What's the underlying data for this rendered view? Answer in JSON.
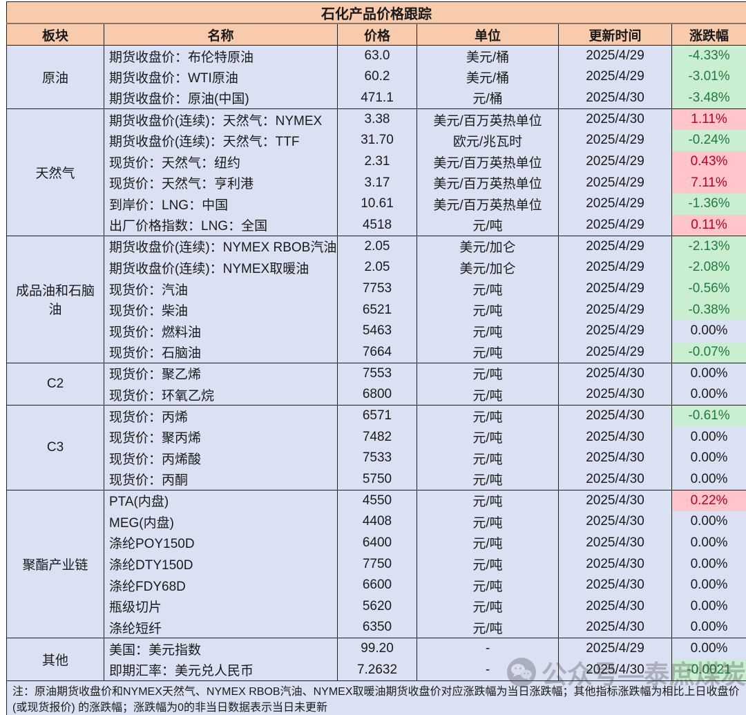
{
  "title": "石化产品价格跟踪",
  "columns": [
    "板块",
    "名称",
    "价格",
    "单位",
    "更新时间",
    "涨跌幅"
  ],
  "colors": {
    "header_bg": "#F8CBAD",
    "row_bg": "#D9E1F2",
    "up_bg": "#FFC5CB",
    "up_text": "#C00020",
    "down_bg": "#C9EED1",
    "down_text": "#1E7B3C",
    "text": "#1A1A1A",
    "border": "#1F1F1F"
  },
  "sections": [
    {
      "sector": "原油",
      "rows": [
        {
          "name": "期货收盘价：布伦特原油",
          "price": "63.0",
          "unit": "美元/桶",
          "date": "2025/4/29",
          "change": "-4.33%",
          "trend": "down"
        },
        {
          "name": "期货收盘价：WTI原油",
          "price": "60.2",
          "unit": "美元/桶",
          "date": "2025/4/29",
          "change": "-3.01%",
          "trend": "down"
        },
        {
          "name": "期货收盘价：原油(中国)",
          "price": "471.1",
          "unit": "元/桶",
          "date": "2025/4/30",
          "change": "-3.48%",
          "trend": "down"
        }
      ]
    },
    {
      "sector": "天然气",
      "rows": [
        {
          "name": "期货收盘价(连续)：天然气：NYMEX",
          "price": "3.38",
          "unit": "美元/百万英热单位",
          "date": "2025/4/30",
          "change": "1.11%",
          "trend": "up"
        },
        {
          "name": "期货收盘价(连续)：天然气：TTF",
          "price": "31.70",
          "unit": "欧元/兆瓦时",
          "date": "2025/4/29",
          "change": "-0.24%",
          "trend": "down"
        },
        {
          "name": "现货价：天然气：纽约",
          "price": "2.31",
          "unit": "美元/百万英热单位",
          "date": "2025/4/29",
          "change": "0.43%",
          "trend": "up"
        },
        {
          "name": "现货价：天然气：亨利港",
          "price": "3.17",
          "unit": "美元/百万英热单位",
          "date": "2025/4/29",
          "change": "7.11%",
          "trend": "up"
        },
        {
          "name": "到岸价：LNG：中国",
          "price": "10.61",
          "unit": "美元/百万英热单位",
          "date": "2025/4/29",
          "change": "-1.36%",
          "trend": "down"
        },
        {
          "name": "出厂价格指数：LNG：全国",
          "price": "4518",
          "unit": "元/吨",
          "date": "2025/4/29",
          "change": "0.11%",
          "trend": "up"
        }
      ]
    },
    {
      "sector": "成品油和石脑油",
      "rows": [
        {
          "name": "期货收盘价(连续)：NYMEX RBOB汽油",
          "price": "2.05",
          "unit": "美元/加仑",
          "date": "2025/4/29",
          "change": "-2.13%",
          "trend": "down"
        },
        {
          "name": "期货收盘价(连续)：NYMEX取暖油",
          "price": "2.05",
          "unit": "美元/加仑",
          "date": "2025/4/29",
          "change": "-2.08%",
          "trend": "down"
        },
        {
          "name": "现货价：汽油",
          "price": "7753",
          "unit": "元/吨",
          "date": "2025/4/29",
          "change": "-0.56%",
          "trend": "down"
        },
        {
          "name": "现货价：柴油",
          "price": "6521",
          "unit": "元/吨",
          "date": "2025/4/29",
          "change": "-0.38%",
          "trend": "down"
        },
        {
          "name": "现货价：燃料油",
          "price": "5463",
          "unit": "元/吨",
          "date": "2025/4/29",
          "change": "0.00%",
          "trend": "flat"
        },
        {
          "name": "现货价：石脑油",
          "price": "7664",
          "unit": "元/吨",
          "date": "2025/4/29",
          "change": "-0.07%",
          "trend": "down"
        }
      ]
    },
    {
      "sector": "C2",
      "rows": [
        {
          "name": "现货价：聚乙烯",
          "price": "7553",
          "unit": "元/吨",
          "date": "2025/4/30",
          "change": "0.00%",
          "trend": "flat"
        },
        {
          "name": "现货价：环氧乙烷",
          "price": "6800",
          "unit": "元/吨",
          "date": "2025/4/30",
          "change": "0.00%",
          "trend": "flat"
        }
      ]
    },
    {
      "sector": "C3",
      "rows": [
        {
          "name": "现货价：丙烯",
          "price": "6571",
          "unit": "元/吨",
          "date": "2025/4/30",
          "change": "-0.61%",
          "trend": "down"
        },
        {
          "name": "现货价：聚丙烯",
          "price": "7482",
          "unit": "元/吨",
          "date": "2025/4/30",
          "change": "0.00%",
          "trend": "flat"
        },
        {
          "name": "现货价：丙烯酸",
          "price": "7533",
          "unit": "元/吨",
          "date": "2025/4/30",
          "change": "0.00%",
          "trend": "flat"
        },
        {
          "name": "现货价：丙酮",
          "price": "5750",
          "unit": "元/吨",
          "date": "2025/4/30",
          "change": "0.00%",
          "trend": "flat"
        }
      ]
    },
    {
      "sector": "聚酯产业链",
      "rows": [
        {
          "name": "PTA(内盘)",
          "price": "4550",
          "unit": "元/吨",
          "date": "2025/4/30",
          "change": "0.22%",
          "trend": "up"
        },
        {
          "name": "MEG(内盘)",
          "price": "4408",
          "unit": "元/吨",
          "date": "2025/4/30",
          "change": "0.00%",
          "trend": "flat"
        },
        {
          "name": "涤纶POY150D",
          "price": "6400",
          "unit": "元/吨",
          "date": "2025/4/30",
          "change": "0.00%",
          "trend": "flat"
        },
        {
          "name": "涤纶DTY150D",
          "price": "7750",
          "unit": "元/吨",
          "date": "2025/4/30",
          "change": "0.00%",
          "trend": "flat"
        },
        {
          "name": "涤纶FDY68D",
          "price": "6600",
          "unit": "元/吨",
          "date": "2025/4/30",
          "change": "0.00%",
          "trend": "flat"
        },
        {
          "name": "瓶级切片",
          "price": "5620",
          "unit": "元/吨",
          "date": "2025/4/30",
          "change": "0.00%",
          "trend": "flat"
        },
        {
          "name": "涤纶短纤",
          "price": "6350",
          "unit": "元/吨",
          "date": "2025/4/30",
          "change": "0.00%",
          "trend": "flat"
        }
      ]
    },
    {
      "sector": "其他",
      "rows": [
        {
          "name": "美国：美元指数",
          "price": "99.20",
          "unit": "-",
          "date": "2025/4/29",
          "change": "0.00%",
          "trend": "flat"
        },
        {
          "name": "即期汇率：美元兑人民币",
          "price": "7.2632",
          "unit": "-",
          "date": "2025/4/30",
          "change": "-0.0021",
          "trend": "down"
        }
      ]
    }
  ],
  "note": {
    "line1": "注：原油期货收盘价和NYMEX天然气、NYMEX RBOB汽油、NYMEX取暖油期货收盘价对应涨跌幅为当日涨跌幅；其他指标涨跌幅为相比上日收盘价",
    "line2": "(或现货报价) 的涨跌幅；涨跌幅为0的非当日数据表示当日未更新"
  },
  "watermark": {
    "text": "公众号—泰庶煤炭"
  }
}
